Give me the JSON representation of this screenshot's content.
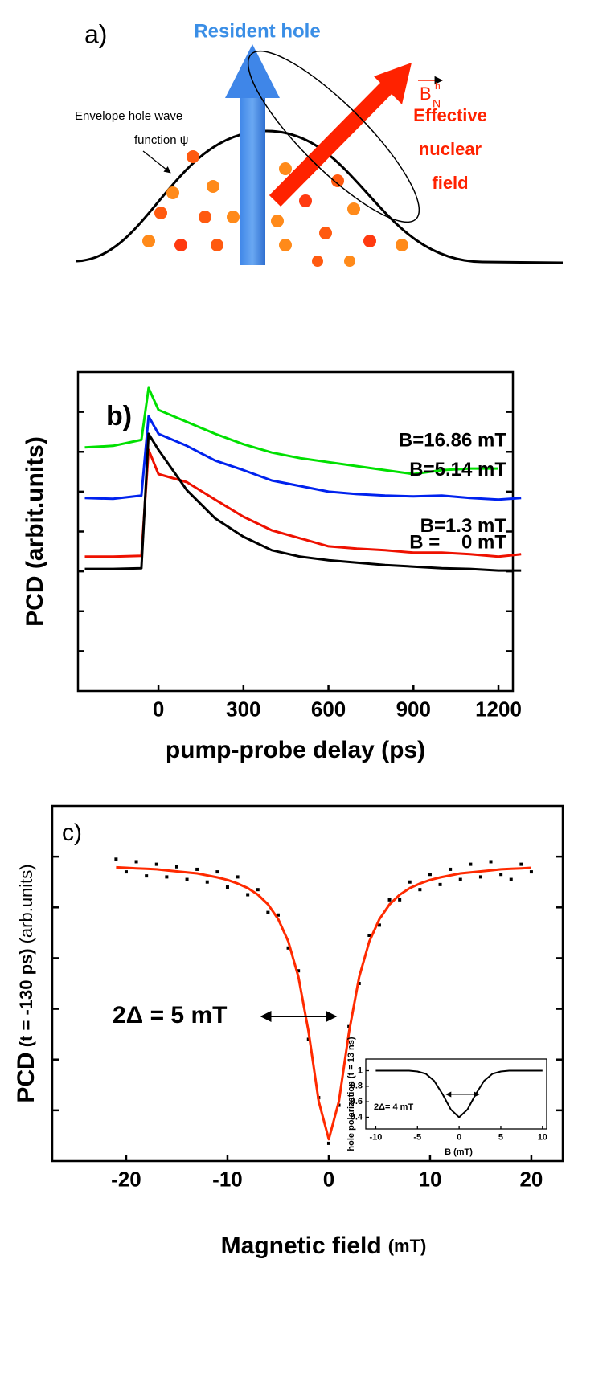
{
  "diagram": {
    "label": "a)",
    "resident_hole": "Resident hole",
    "field_symbol": "B",
    "field_sub": "N",
    "field_sup": "h",
    "effective_field": [
      "Effective",
      "nuclear",
      "field"
    ],
    "envelope": [
      "Envelope hole wave",
      "function ψ"
    ]
  },
  "chart_data": [
    {
      "type": "line",
      "panel_label": "b)",
      "x_label": "pump-probe delay  (ps)",
      "y_label": "PCD (arbit.units)",
      "x": [
        -260,
        -160,
        -60,
        -35,
        0,
        100,
        200,
        300,
        400,
        500,
        600,
        700,
        800,
        900,
        1000,
        1100,
        1200,
        1280
      ],
      "series": [
        {
          "name": "B=16.86 mT",
          "color": "#00e000",
          "values": [
            6.11,
            6.15,
            6.3,
            7.6,
            7.05,
            6.75,
            6.45,
            6.19,
            5.98,
            5.84,
            5.74,
            5.64,
            5.54,
            5.44,
            5.54,
            5.58,
            5.58,
            null
          ]
        },
        {
          "name": "B=5.14 mT",
          "color": "#0022ee",
          "values": [
            4.84,
            4.82,
            4.9,
            6.89,
            6.45,
            6.15,
            5.78,
            5.54,
            5.28,
            5.14,
            5.0,
            4.94,
            4.9,
            4.88,
            4.9,
            4.84,
            4.8,
            4.84
          ]
        },
        {
          "name": "B=1.3 mT",
          "color": "#ee1100",
          "values": [
            3.37,
            3.37,
            3.39,
            6.05,
            5.44,
            5.24,
            4.8,
            4.37,
            4.03,
            3.83,
            3.63,
            3.57,
            3.53,
            3.47,
            3.47,
            3.43,
            3.37,
            3.43
          ]
        },
        {
          "name": "B =    0 mT",
          "color": "#000000",
          "values": [
            3.06,
            3.06,
            3.08,
            6.45,
            6.05,
            5.04,
            4.33,
            3.87,
            3.53,
            3.37,
            3.28,
            3.22,
            3.16,
            3.12,
            3.08,
            3.06,
            3.02,
            3.02
          ]
        }
      ],
      "xlim": [
        -284,
        1251
      ],
      "xticks": [
        0,
        300,
        600,
        900,
        1200
      ],
      "ylim": [
        0,
        8
      ],
      "yticks": [
        1,
        2,
        3,
        4,
        5,
        6,
        7
      ]
    },
    {
      "type": "scatter",
      "panel_label": "c)",
      "x_label": "Magnetic field",
      "x_label_unit": "(mT)",
      "y_label": "PCD",
      "y_label_sub": "(t = -130 ps)",
      "y_label_unit": "(arb.units)",
      "annotation": "2Δ = 5 mT",
      "x": [
        -21,
        -20,
        -19,
        -18,
        -17,
        -16,
        -15,
        -14,
        -13,
        -12,
        -11,
        -10,
        -9,
        -8,
        -7,
        -6,
        -5,
        -4,
        -3,
        -2,
        -1,
        0,
        1,
        2,
        3,
        4,
        5,
        6,
        7,
        8,
        9,
        10,
        11,
        12,
        13,
        14,
        15,
        16,
        17,
        18,
        19,
        20
      ],
      "series": [
        {
          "color": "#000000",
          "marker": "square",
          "values": [
            5.95,
            5.7,
            5.9,
            5.62,
            5.85,
            5.6,
            5.8,
            5.55,
            5.75,
            5.5,
            5.7,
            5.4,
            5.6,
            5.25,
            5.35,
            4.9,
            4.85,
            4.2,
            3.75,
            2.4,
            1.25,
            0.35,
            1.1,
            2.65,
            3.5,
            4.45,
            4.65,
            5.15,
            5.15,
            5.5,
            5.35,
            5.65,
            5.45,
            5.75,
            5.55,
            5.85,
            5.6,
            5.9,
            5.65,
            5.55,
            5.85,
            5.7
          ]
        },
        {
          "color": "#ff2a00",
          "marker": "line",
          "values": [
            5.79,
            5.78,
            5.77,
            5.76,
            5.75,
            5.73,
            5.71,
            5.69,
            5.67,
            5.63,
            5.59,
            5.54,
            5.47,
            5.38,
            5.25,
            5.06,
            4.77,
            4.33,
            3.63,
            2.55,
            1.18,
            0.43,
            1.18,
            2.55,
            3.63,
            4.33,
            4.77,
            5.06,
            5.25,
            5.38,
            5.47,
            5.54,
            5.59,
            5.63,
            5.67,
            5.69,
            5.71,
            5.73,
            5.75,
            5.76,
            5.77,
            5.78
          ]
        }
      ],
      "xlim": [
        -27.3,
        23.1
      ],
      "xticks": [
        -20,
        -10,
        0,
        10,
        20
      ],
      "ylim": [
        0,
        7
      ],
      "yticks": [
        1,
        2,
        3,
        4,
        5,
        6
      ]
    },
    {
      "type": "line",
      "x_label": "B (mT)",
      "y_label": "hole polarization (t = 13 ns)",
      "annotation": "2Δ= 4 mT",
      "x": [
        -10,
        -9,
        -8,
        -7,
        -6,
        -5,
        -4,
        -3,
        -2,
        -1,
        0,
        1,
        2,
        3,
        4,
        5,
        6,
        7,
        8,
        9,
        10
      ],
      "series": [
        {
          "color": "#000000",
          "values": [
            1,
            1,
            1,
            1,
            1,
            0.99,
            0.96,
            0.87,
            0.7,
            0.5,
            0.4,
            0.5,
            0.7,
            0.87,
            0.96,
            0.99,
            1,
            1,
            1,
            1,
            1
          ]
        }
      ],
      "xlim": [
        -11.2,
        10.5
      ],
      "xticks": [
        -10,
        -5,
        0,
        5,
        10
      ],
      "ylim": [
        0.25,
        1.15
      ],
      "yticks": [
        0.4,
        0.6,
        0.8,
        1
      ]
    }
  ]
}
